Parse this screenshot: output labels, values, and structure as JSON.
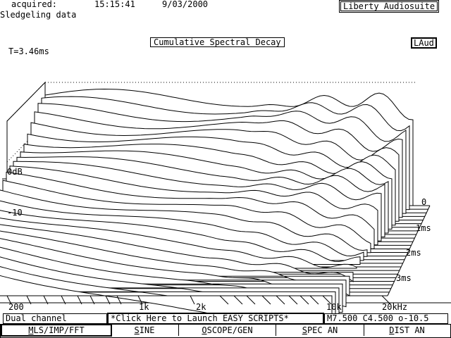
{
  "header": {
    "acquired_label": "acquired:",
    "time": "15:15:41",
    "date": "9/03/2000",
    "app_title": "Liberty Audiosuite",
    "measurement_name": "Sledgeling data"
  },
  "plot": {
    "title": "Cumulative Spectral Decay",
    "badge": "LAud",
    "t_label": "T=3.46ms",
    "y_labels": [
      "0dB",
      "-10"
    ],
    "time_labels": [
      "0",
      "1ms",
      "2ms",
      "3ms"
    ],
    "freq_labels": [
      "200",
      "1k",
      "2k",
      "10k",
      "20kHz"
    ]
  },
  "status": {
    "channel": "Dual channel",
    "scripts_link": "*Click Here to Launch EASY SCRIPTS*",
    "params": "M7.500 C4.500 o-10.5"
  },
  "menu": [
    {
      "first": "M",
      "rest": "LS/IMP/FFT",
      "active": true
    },
    {
      "first": "S",
      "rest": "INE",
      "active": false
    },
    {
      "first": "O",
      "rest": "SCOPE/GEN",
      "active": false
    },
    {
      "first": "S",
      "rest": "PEC AN",
      "active": false
    },
    {
      "first": "D",
      "rest": "IST AN",
      "active": false
    }
  ]
}
